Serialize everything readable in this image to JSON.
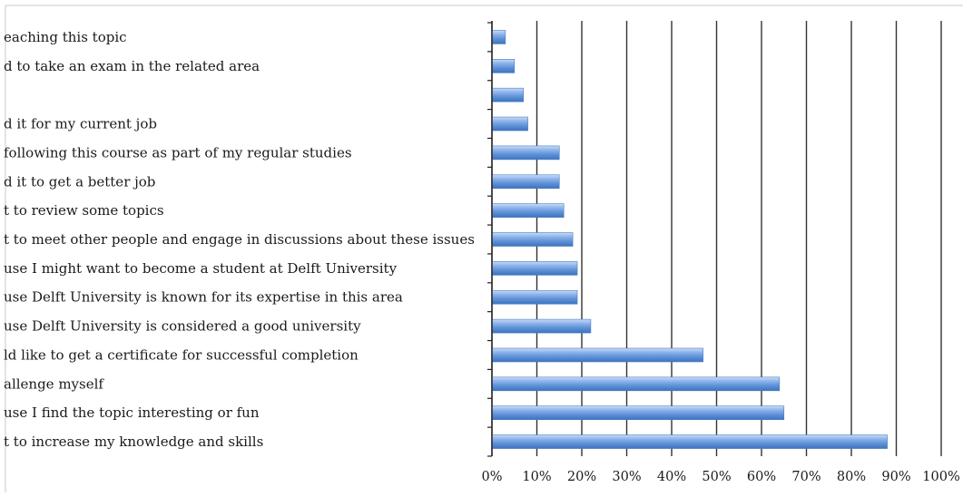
{
  "chart_data": {
    "type": "bar",
    "orientation": "horizontal",
    "categories": [
      "eaching this topic",
      "d to take an exam in the related area",
      "",
      "d it for my current job",
      "following this course as part of my regular studies",
      "d it to get a better job",
      "t to review some topics",
      "t to meet other people and engage in discussions about these issues",
      "use I might want to become a student at Delft University",
      "use Delft University is known for its expertise in this area",
      "use Delft University is considered a good university",
      "ld like to get a certificate for successful completion",
      "allenge myself",
      "use I find the topic interesting or fun",
      "t to increase my knowledge and skills"
    ],
    "values": [
      3,
      5,
      7,
      8,
      15,
      15,
      16,
      18,
      19,
      19,
      22,
      47,
      64,
      65,
      88
    ],
    "x_ticks": [
      "0%",
      "10%",
      "20%",
      "30%",
      "40%",
      "50%",
      "60%",
      "70%",
      "80%",
      "90%",
      "100%"
    ],
    "xlim": [
      0,
      100
    ],
    "grid": true,
    "legend": "none",
    "bar_color": "#5b8fd6",
    "grid_color": "#333333"
  }
}
